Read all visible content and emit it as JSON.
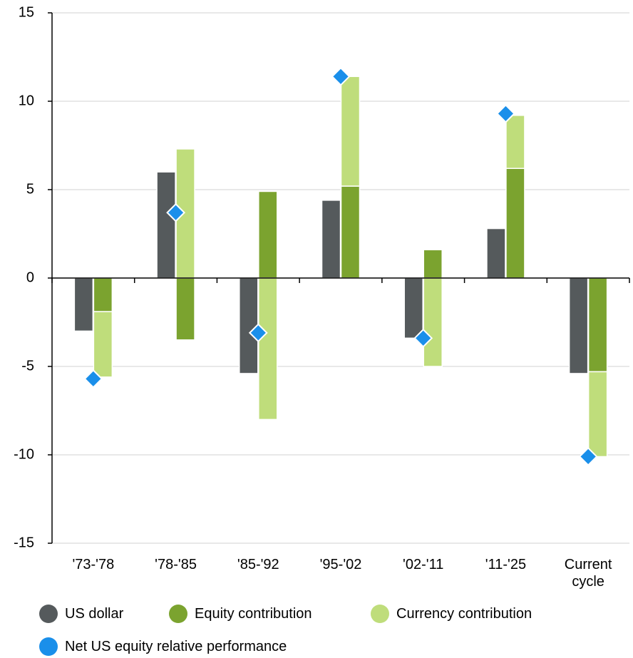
{
  "chart_data": {
    "type": "bar",
    "categories": [
      "'73-'78",
      "'78-'85",
      "'85-'92",
      "'95-'02",
      "'02-'11",
      "'11-'25",
      "Current cycle"
    ],
    "series": [
      {
        "name": "US dollar",
        "color": "#555a5c",
        "values": [
          -3.0,
          6.0,
          -5.4,
          4.4,
          -3.4,
          2.8,
          -5.4
        ]
      },
      {
        "name": "Equity contribution",
        "color": "#7ba32f",
        "stack": "a",
        "values": [
          -1.9,
          -3.5,
          4.9,
          5.2,
          1.6,
          6.2,
          -5.3
        ]
      },
      {
        "name": "Currency contribution",
        "color": "#bfdd7b",
        "stack": "a",
        "values": [
          -3.7,
          7.3,
          -8.0,
          6.2,
          -5.0,
          3.0,
          -4.8
        ]
      },
      {
        "name": "Net US equity relative performance",
        "color": "#1a8fea",
        "marker": "diamond",
        "values": [
          -5.7,
          3.7,
          -3.1,
          11.4,
          -3.4,
          9.3,
          -10.1
        ]
      }
    ],
    "ylim": [
      -15,
      15
    ],
    "yticks": [
      -15,
      -10,
      -5,
      0,
      5,
      10,
      15
    ],
    "grid": true
  }
}
